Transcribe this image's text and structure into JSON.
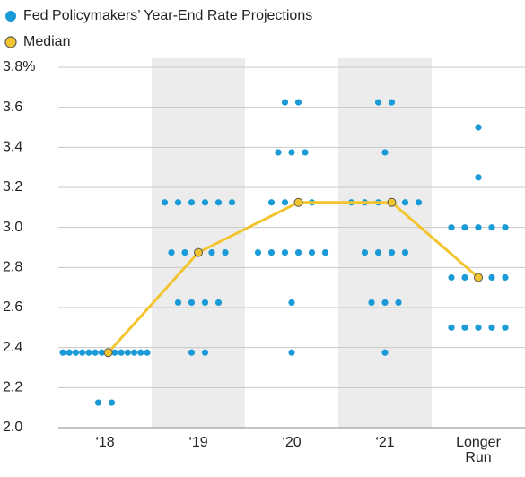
{
  "chart_data": {
    "type": "dot",
    "legend": [
      "Fed Policymakers’ Year-End Rate Projections",
      "Median"
    ],
    "categories": [
      "‘18",
      "‘19",
      "‘20",
      "‘21",
      "Longer Run"
    ],
    "series": [
      {
        "name": "Fed Policymakers’ Year-End Rate Projections",
        "color": "#1a9ad6",
        "values": [
          [
            2.125,
            2.125,
            2.375,
            2.375,
            2.375,
            2.375,
            2.375,
            2.375,
            2.375,
            2.375,
            2.375,
            2.375,
            2.375,
            2.375,
            2.375
          ],
          [
            2.375,
            2.375,
            2.625,
            2.625,
            2.625,
            2.625,
            2.875,
            2.875,
            2.875,
            2.875,
            3.125,
            3.125,
            3.125,
            3.125,
            3.125,
            3.125
          ],
          [
            2.375,
            2.625,
            2.875,
            2.875,
            2.875,
            2.875,
            2.875,
            2.875,
            3.125,
            3.125,
            3.125,
            3.375,
            3.375,
            3.375,
            3.625,
            3.625
          ],
          [
            2.375,
            2.625,
            2.625,
            2.625,
            2.875,
            2.875,
            2.875,
            2.875,
            3.125,
            3.125,
            3.125,
            3.125,
            3.125,
            3.375,
            3.625,
            3.625
          ],
          [
            2.5,
            2.5,
            2.5,
            2.5,
            2.5,
            2.75,
            2.75,
            2.75,
            2.75,
            3,
            3,
            3,
            3,
            3,
            3.25,
            3.5
          ]
        ]
      },
      {
        "name": "Median",
        "color": "#f2c530",
        "values": [
          2.375,
          2.875,
          3.125,
          3.125,
          2.75
        ]
      }
    ],
    "ylim": [
      2,
      3.8
    ],
    "yticks": [
      {
        "value": 2,
        "label": "2.0"
      },
      2.2,
      2.4,
      2.6,
      2.8,
      {
        "value": 3,
        "label": "3.0"
      },
      3.2,
      3.4,
      3.6,
      {
        "value": 3.8,
        "label": "3.8%"
      }
    ],
    "grid": true
  }
}
